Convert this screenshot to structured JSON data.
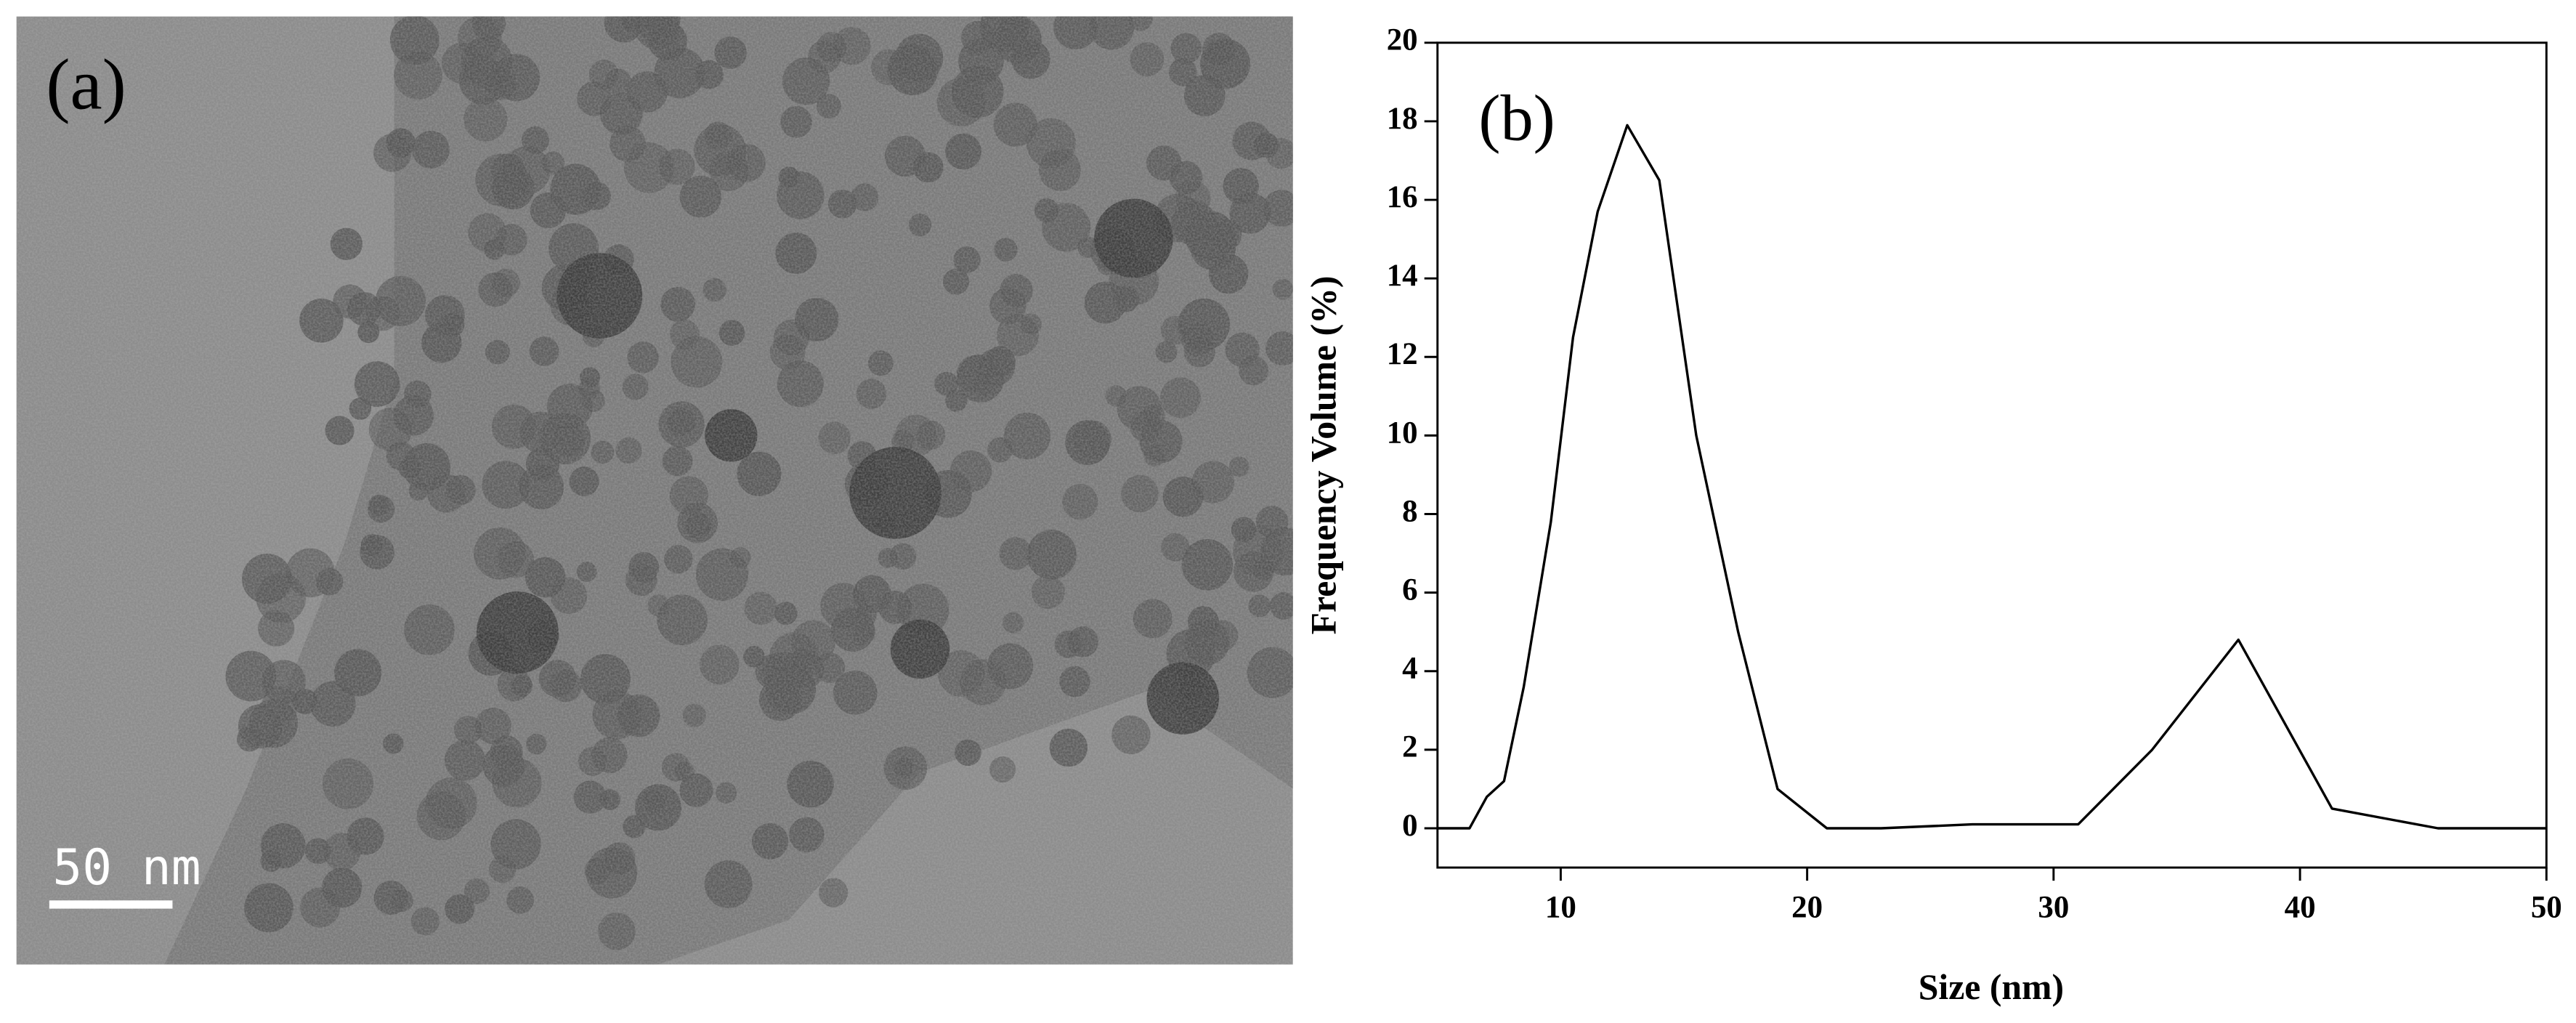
{
  "panel_a": {
    "label": "(a)",
    "scale_bar": "50 nm"
  },
  "chart_data": {
    "type": "line",
    "panel_label": "(b)",
    "x_label": "Size (nm)",
    "y_label": "Frequency Volume (%)",
    "x": [
      5,
      6.3,
      7,
      7.7,
      8.5,
      9.6,
      10.5,
      11.5,
      12.7,
      14,
      15.5,
      17.2,
      18.8,
      20.8,
      23,
      26.7,
      28.7,
      31,
      34,
      37.5,
      41.3,
      45.6,
      50
    ],
    "series": [
      {
        "color": "#000000",
        "values": [
          0,
          0,
          0.8,
          1.2,
          3.6,
          7.8,
          12.5,
          15.7,
          17.9,
          16.5,
          10,
          5,
          1,
          0,
          0,
          0.1,
          0.1,
          0.1,
          2,
          4.8,
          0.5,
          0,
          0
        ]
      }
    ],
    "xlim": [
      5,
      50
    ],
    "xticks": [
      10,
      20,
      30,
      40,
      50
    ],
    "ylim": [
      -1,
      20
    ],
    "yticks": [
      0,
      2,
      4,
      6,
      8,
      10,
      12,
      14,
      16,
      18,
      20
    ]
  }
}
